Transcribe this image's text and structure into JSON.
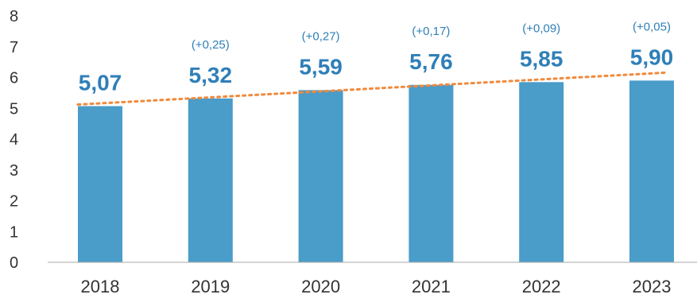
{
  "chart_data": {
    "type": "bar",
    "categories": [
      "2018",
      "2019",
      "2020",
      "2021",
      "2022",
      "2023"
    ],
    "values": [
      5.07,
      5.32,
      5.59,
      5.76,
      5.85,
      5.9
    ],
    "value_labels": [
      "5,07",
      "5,32",
      "5,59",
      "5,76",
      "5,85",
      "5,90"
    ],
    "change_labels": [
      "",
      "(+0,25)",
      "(+0,27)",
      "(+0,17)",
      "(+0,09)",
      "(+0,05)"
    ],
    "yticks": [
      "0",
      "1",
      "2",
      "3",
      "4",
      "5",
      "6",
      "7",
      "8"
    ],
    "ylim": [
      0,
      8
    ],
    "title": "",
    "xlabel": "",
    "ylabel": "",
    "grid": false,
    "trendline": true,
    "colors": {
      "bar": "#4a9cc9",
      "label": "#2f7fb8",
      "trend": "#f08a3c",
      "axis": "#aaaaaa"
    }
  }
}
